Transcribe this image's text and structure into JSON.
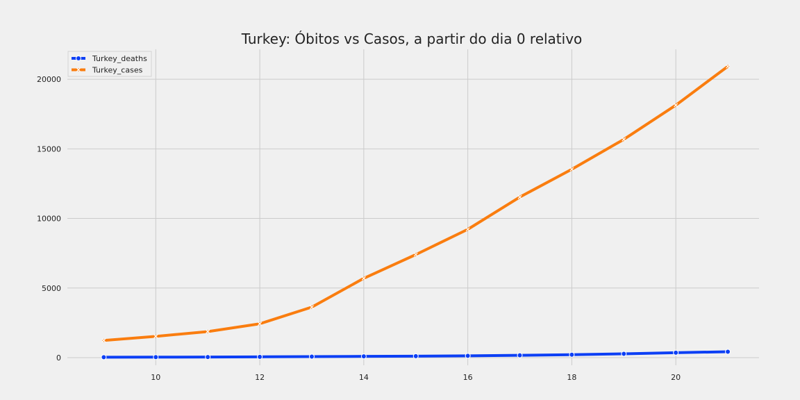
{
  "chart_data": {
    "type": "line",
    "title": "Turkey: Óbitos vs Casos, a partir do dia 0 relativo",
    "xlabel": "",
    "ylabel": "",
    "x": [
      9,
      10,
      11,
      12,
      13,
      14,
      15,
      16,
      17,
      18,
      19,
      20,
      21
    ],
    "xlim": [
      8.3,
      21.6
    ],
    "ylim": [
      0,
      21900
    ],
    "xticks": [
      10,
      12,
      14,
      16,
      18,
      20
    ],
    "yticks": [
      0,
      5000,
      10000,
      15000,
      20000
    ],
    "grid": true,
    "legend_position": "top-left",
    "series": [
      {
        "name": "Turkey_deaths",
        "color": "#0c3ff5",
        "marker": "circle",
        "values": [
          30,
          37,
          44,
          59,
          75,
          92,
          108,
          131,
          168,
          214,
          277,
          356,
          425
        ]
      },
      {
        "name": "Turkey_cases",
        "color": "#fa7d0f",
        "marker": "x",
        "values": [
          1236,
          1529,
          1872,
          2433,
          3629,
          5698,
          7402,
          9217,
          11535,
          13531,
          15679,
          18135,
          20921
        ]
      }
    ]
  }
}
